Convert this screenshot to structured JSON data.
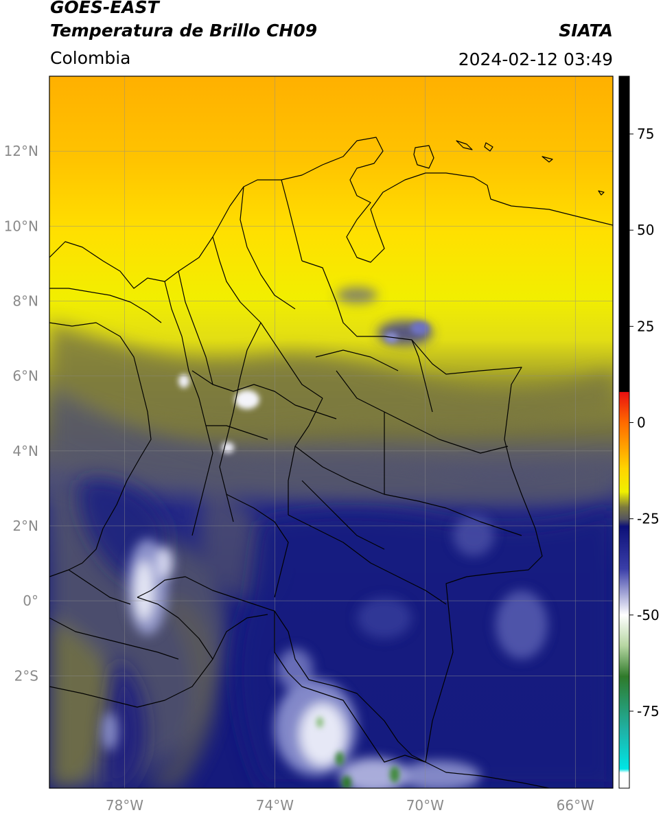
{
  "header": {
    "satellite": "GOES-EAST",
    "product": "Temperatura de Brillo CH09",
    "organization": "SIATA",
    "region": "Colombia",
    "datetime": "2024-02-12 03:49"
  },
  "map": {
    "lon_range": [
      -80,
      -65
    ],
    "lat_range": [
      -5,
      14
    ],
    "lon_ticks": [
      {
        "value": -78,
        "label": "78°W"
      },
      {
        "value": -74,
        "label": "74°W"
      },
      {
        "value": -70,
        "label": "70°W"
      },
      {
        "value": -66,
        "label": "66°W"
      }
    ],
    "lat_ticks": [
      {
        "value": 12,
        "label": "12°N"
      },
      {
        "value": 10,
        "label": "10°N"
      },
      {
        "value": 8,
        "label": "8°N"
      },
      {
        "value": 6,
        "label": "6°N"
      },
      {
        "value": 4,
        "label": "4°N"
      },
      {
        "value": 2,
        "label": "2°N"
      },
      {
        "value": 0,
        "label": "0°"
      },
      {
        "value": -2,
        "label": "2°S"
      }
    ],
    "colors": {
      "warm": "#ffb400",
      "yellow": "#f0f000",
      "olive": "#76753f",
      "gray": "#5d5d66",
      "navy": "#151a80",
      "white": "#e8e8f0",
      "green": "#3f8a3a"
    }
  },
  "colorbar": {
    "range": [
      -95,
      90
    ],
    "tick_values": [
      75,
      50,
      25,
      0,
      -25,
      -50,
      -75
    ],
    "tick_labels": [
      "75",
      "50",
      "25",
      "0",
      "-25",
      "-50",
      "-75"
    ],
    "stops": [
      {
        "value": 90,
        "color": "#000000"
      },
      {
        "value": 8,
        "color": "#000000"
      },
      {
        "value": 7.9,
        "color": "#e81010"
      },
      {
        "value": 0,
        "color": "#ff6a00"
      },
      {
        "value": -12,
        "color": "#ffd400"
      },
      {
        "value": -18,
        "color": "#f0f000"
      },
      {
        "value": -22,
        "color": "#7c7a3e"
      },
      {
        "value": -25,
        "color": "#55555f"
      },
      {
        "value": -27,
        "color": "#0c1078"
      },
      {
        "value": -38,
        "color": "#3a3ea8"
      },
      {
        "value": -50,
        "color": "#ffffff"
      },
      {
        "value": -58,
        "color": "#b6d6a2"
      },
      {
        "value": -66,
        "color": "#2f7a2a"
      },
      {
        "value": -80,
        "color": "#1fb2a6"
      },
      {
        "value": -90,
        "color": "#00e6e6"
      },
      {
        "value": -91,
        "color": "#ffffff"
      },
      {
        "value": -95,
        "color": "#ffffff"
      }
    ]
  }
}
